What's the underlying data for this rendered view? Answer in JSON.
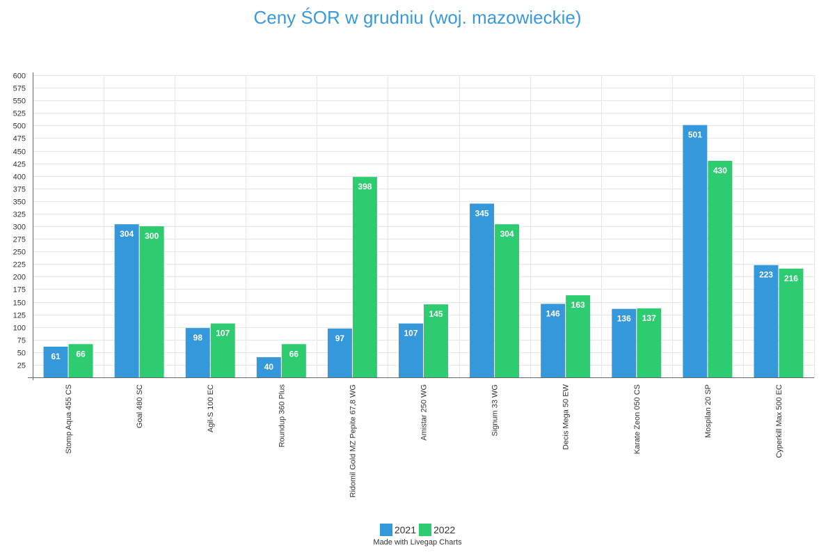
{
  "chart_data": {
    "type": "bar",
    "title": "Ceny ŚOR w grudniu (woj. mazowieckie)",
    "xlabel": "",
    "ylabel": "",
    "ylim": [
      0,
      600
    ],
    "ytick_step": 25,
    "grid": true,
    "legend_position": "bottom",
    "categories": [
      "Stomp Aqua 455 CS",
      "Goal 480 SC",
      "Agil-S 100 EC",
      "Roundup 360 Plus",
      "Ridomil Gold MZ Pepite 67,8 WG",
      "Amistar 250 WG",
      "Signum 33 WG",
      "Decis Mega 50 EW",
      "Karate Zeon 050 CS",
      "Mospilan 20 SP",
      "Cyperkill Max 500 EC"
    ],
    "series": [
      {
        "name": "2021",
        "color": "#3498db",
        "values": [
          61,
          304,
          98,
          40,
          97,
          107,
          345,
          146,
          136,
          501,
          223
        ]
      },
      {
        "name": "2022",
        "color": "#2ecc71",
        "values": [
          66,
          300,
          107,
          66,
          398,
          145,
          304,
          163,
          137,
          430,
          216
        ]
      }
    ]
  },
  "footer": {
    "credit": "Made with Livegap Charts"
  }
}
